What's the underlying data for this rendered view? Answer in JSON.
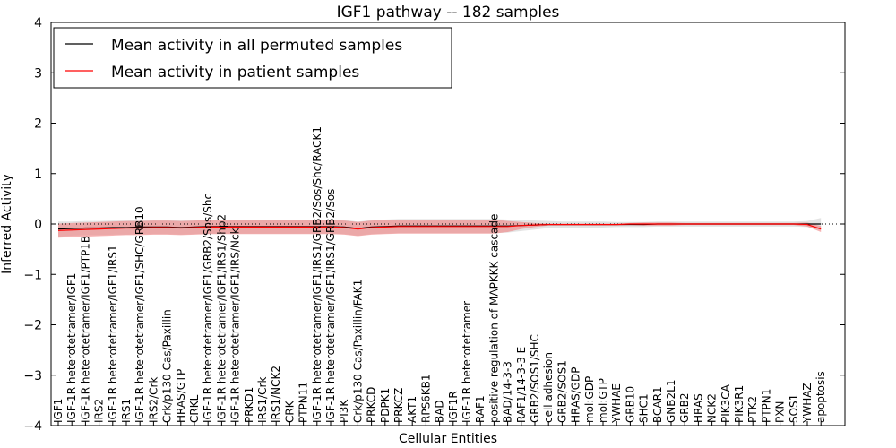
{
  "chart_data": {
    "type": "line",
    "title": "IGF1 pathway -- 182 samples",
    "xlabel": "Cellular Entities",
    "ylabel": "Inferred Activity",
    "ylim": [
      -4,
      4
    ],
    "yticks": [
      "4",
      "3",
      "2",
      "1",
      "0",
      "−1",
      "−2",
      "−3",
      "−4"
    ],
    "grid": false,
    "legend_position": "top-left",
    "categories": [
      "IGF1",
      "IGF-1R heterotetramer/IGF1",
      "IGF-1R heterotetramer/IGF1/PTP1B",
      "IRS2",
      "IGF-1R heterotetramer/IGF1/IRS1",
      "IRS1",
      "IGF-1R heterotetramer/IGF1/SHC/GRB10",
      "IRS2/Crk",
      "Crk/p130 Cas/Paxillin",
      "HRAS/GTP",
      "CRKL",
      "IGF-1R heterotetramer/IGF1/GRB2/Sos/Shc",
      "IGF-1R heterotetramer/IGF1/IRS1/Shp2",
      "IGF-1R heterotetramer/IGF1/IRS/Nck",
      "PRKD1",
      "IRS1/Crk",
      "IRS1/NCK2",
      "CRK",
      "PTPN11",
      "IGF-1R heterotetramer/IGF1/IRS1/GRB2/Sos/Shc/RACK1",
      "IGF-1R heterotetramer/IGF1/IRS1/GRB2/Sos",
      "PI3K",
      "Crk/p130 Cas/Paxillin/FAK1",
      "PRKCD",
      "PDPK1",
      "PRKCZ",
      "AKT1",
      "RPS6KB1",
      "BAD",
      "IGF1R",
      "IGF-1R heterotetramer",
      "RAF1",
      "positive regulation of MAPKKK cascade",
      "BAD/14-3-3",
      "RAF1/14-3-3 E",
      "GRB2/SOS1/SHC",
      "cell adhesion",
      "GRB2/SOS1",
      "HRAS/GDP",
      "mol:GDP",
      "mol:GTP",
      "YWHAE",
      "GRB10",
      "SHC1",
      "BCAR1",
      "GNB2L1",
      "GRB2",
      "HRAS",
      "NCK2",
      "PIK3CA",
      "PIK3R1",
      "PTK2",
      "PTPN1",
      "PXN",
      "SOS1",
      "YWHAZ",
      "apoptosis"
    ],
    "series": [
      {
        "name": "Mean activity in all permuted samples",
        "color": "#000000",
        "band_color": "#cccccc",
        "values": [
          -0.1,
          -0.09,
          -0.08,
          -0.08,
          -0.07,
          -0.07,
          -0.06,
          -0.06,
          -0.06,
          -0.07,
          -0.06,
          -0.05,
          -0.05,
          -0.05,
          -0.05,
          -0.05,
          -0.05,
          -0.05,
          -0.05,
          -0.05,
          -0.05,
          -0.06,
          -0.09,
          -0.06,
          -0.05,
          -0.04,
          -0.04,
          -0.04,
          -0.04,
          -0.04,
          -0.04,
          -0.04,
          -0.04,
          -0.04,
          -0.03,
          -0.02,
          -0.01,
          -0.01,
          -0.01,
          -0.01,
          -0.01,
          -0.01,
          -0.01,
          -0.01,
          0.0,
          0.0,
          0.0,
          0.0,
          0.0,
          0.0,
          0.0,
          0.0,
          0.0,
          0.0,
          0.0,
          0.0,
          0.0
        ],
        "std": [
          0.15,
          0.14,
          0.14,
          0.14,
          0.14,
          0.14,
          0.14,
          0.14,
          0.14,
          0.14,
          0.14,
          0.14,
          0.14,
          0.14,
          0.14,
          0.14,
          0.14,
          0.14,
          0.14,
          0.14,
          0.14,
          0.14,
          0.14,
          0.14,
          0.14,
          0.14,
          0.14,
          0.14,
          0.14,
          0.14,
          0.14,
          0.14,
          0.14,
          0.13,
          0.11,
          0.09,
          0.07,
          0.06,
          0.06,
          0.06,
          0.06,
          0.05,
          0.05,
          0.05,
          0.05,
          0.05,
          0.05,
          0.05,
          0.05,
          0.05,
          0.05,
          0.05,
          0.05,
          0.05,
          0.05,
          0.06,
          0.12
        ]
      },
      {
        "name": "Mean activity in patient samples",
        "color": "#ff0000",
        "band_color": "#f08080",
        "values": [
          -0.13,
          -0.12,
          -0.11,
          -0.1,
          -0.09,
          -0.08,
          -0.08,
          -0.07,
          -0.07,
          -0.08,
          -0.07,
          -0.06,
          -0.06,
          -0.06,
          -0.06,
          -0.06,
          -0.06,
          -0.06,
          -0.06,
          -0.06,
          -0.06,
          -0.07,
          -0.1,
          -0.07,
          -0.06,
          -0.05,
          -0.05,
          -0.05,
          -0.05,
          -0.05,
          -0.05,
          -0.05,
          -0.05,
          -0.05,
          -0.03,
          -0.02,
          -0.01,
          -0.01,
          -0.01,
          -0.01,
          -0.01,
          -0.01,
          0.0,
          0.0,
          0.0,
          0.0,
          0.0,
          0.0,
          0.0,
          0.0,
          0.0,
          0.0,
          0.0,
          0.0,
          0.0,
          -0.01,
          -0.1
        ],
        "std": [
          0.14,
          0.14,
          0.14,
          0.14,
          0.14,
          0.14,
          0.14,
          0.14,
          0.14,
          0.14,
          0.14,
          0.14,
          0.14,
          0.14,
          0.14,
          0.14,
          0.14,
          0.14,
          0.14,
          0.14,
          0.14,
          0.14,
          0.14,
          0.14,
          0.14,
          0.14,
          0.14,
          0.14,
          0.14,
          0.14,
          0.14,
          0.14,
          0.14,
          0.11,
          0.07,
          0.04,
          0.02,
          0.02,
          0.02,
          0.02,
          0.02,
          0.02,
          0.02,
          0.03,
          0.03,
          0.03,
          0.02,
          0.02,
          0.02,
          0.02,
          0.02,
          0.02,
          0.02,
          0.02,
          0.02,
          0.04,
          0.06
        ]
      }
    ]
  }
}
